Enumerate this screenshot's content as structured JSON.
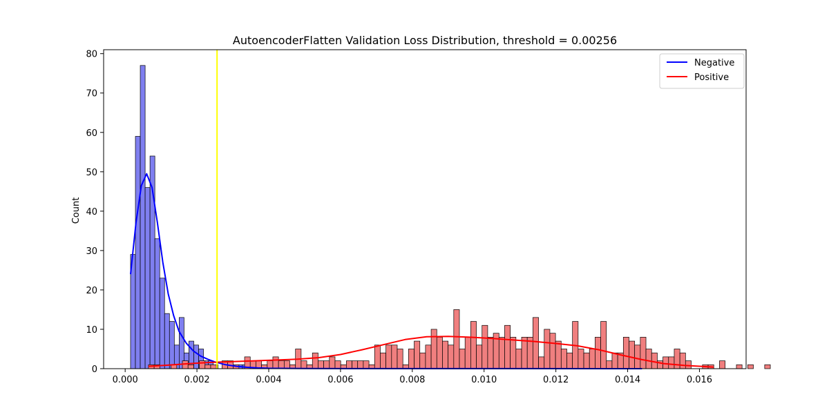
{
  "chart_data": {
    "type": "bar",
    "title": "AutoencoderFlatten Validation Loss Distribution, threshold = 0.00256",
    "xlabel": "",
    "ylabel": "Count",
    "xlim": [
      -0.0006,
      0.0173
    ],
    "ylim": [
      0,
      81
    ],
    "xticks": [
      0.0,
      0.002,
      0.004,
      0.006,
      0.008,
      0.01,
      0.012,
      0.014,
      0.016
    ],
    "xtick_labels": [
      "0.000",
      "0.002",
      "0.004",
      "0.006",
      "0.008",
      "0.010",
      "0.012",
      "0.014",
      "0.016"
    ],
    "yticks": [
      0,
      10,
      20,
      30,
      40,
      50,
      60,
      70,
      80
    ],
    "ytick_labels": [
      "0",
      "10",
      "20",
      "30",
      "40",
      "50",
      "60",
      "70",
      "80"
    ],
    "grid": false,
    "legend_position": "top-right",
    "threshold": {
      "x": 0.00256,
      "color": "#ffff00"
    },
    "series": [
      {
        "name": "Negative",
        "color": "#0000ff",
        "fill": "#7f7ff0",
        "bin_start": 0.00015,
        "bin_width": 0.0001355,
        "counts": [
          29,
          59,
          77,
          46,
          54,
          33,
          23,
          14,
          12,
          6,
          13,
          4,
          7,
          6,
          5,
          2,
          2,
          1,
          0,
          1,
          1,
          1,
          1,
          1,
          1,
          1,
          0,
          0,
          0,
          1,
          0,
          0,
          0,
          0,
          0,
          0,
          0,
          0,
          0,
          0,
          0,
          0,
          0,
          0,
          0,
          0,
          0,
          0,
          0,
          0,
          0,
          0,
          0,
          0,
          0,
          0,
          0,
          0,
          0,
          0,
          0,
          0,
          0,
          0,
          0,
          0,
          0,
          0,
          0,
          0,
          0,
          0,
          0,
          0,
          0,
          0,
          0,
          0,
          0,
          0,
          0,
          0,
          0,
          0,
          0,
          0,
          0,
          0,
          0,
          0,
          0,
          0,
          0,
          0,
          0,
          0,
          0,
          0,
          0,
          1
        ],
        "kde": {
          "x": [
            0.00015,
            0.0003,
            0.00045,
            0.0006,
            0.00075,
            0.0009,
            0.00105,
            0.0012,
            0.00135,
            0.0015,
            0.0017,
            0.0019,
            0.0021,
            0.0023,
            0.0025,
            0.0028,
            0.0031,
            0.0034,
            0.0037,
            0.004,
            0.005,
            0.007,
            0.01,
            0.0144
          ],
          "y": [
            24,
            37,
            46.5,
            49.5,
            46,
            37,
            27,
            19,
            13.5,
            9.5,
            6.5,
            4.5,
            3.2,
            2.4,
            1.7,
            1.0,
            0.6,
            0.35,
            0.2,
            0.1,
            0.05,
            0.02,
            0.01,
            0.0
          ]
        }
      },
      {
        "name": "Positive",
        "color": "#ff0000",
        "fill": "#f07f7f",
        "bin_start": 0.00065,
        "bin_width": 0.0001575,
        "counts": [
          1,
          1,
          0,
          0,
          1,
          0,
          2,
          1,
          0,
          2,
          1,
          1,
          0,
          2,
          2,
          1,
          0,
          3,
          2,
          2,
          1,
          2,
          3,
          2,
          2,
          1,
          5,
          2,
          1,
          4,
          2,
          2,
          3,
          2,
          1,
          2,
          2,
          2,
          2,
          1,
          6,
          4,
          6,
          6,
          5,
          1,
          5,
          7,
          4,
          6,
          10,
          8,
          7,
          6,
          15,
          5,
          8,
          12,
          6,
          11,
          8,
          9,
          8,
          11,
          8,
          5,
          8,
          8,
          13,
          3,
          10,
          9,
          7,
          5,
          4,
          12,
          5,
          4,
          5,
          8,
          12,
          2,
          4,
          4,
          8,
          7,
          6,
          8,
          5,
          4,
          2,
          3,
          3,
          5,
          4,
          2,
          0,
          0,
          1,
          1,
          0,
          2,
          0,
          0,
          1,
          0,
          1,
          0,
          0,
          1
        ],
        "kde": {
          "x": [
            0.00065,
            0.0012,
            0.0018,
            0.0024,
            0.003,
            0.0036,
            0.0042,
            0.0048,
            0.0054,
            0.006,
            0.0066,
            0.0072,
            0.0078,
            0.0084,
            0.009,
            0.0096,
            0.0102,
            0.0108,
            0.0114,
            0.012,
            0.0126,
            0.0132,
            0.0138,
            0.0144,
            0.015,
            0.0156,
            0.0162,
            0.0164
          ],
          "y": [
            0.6,
            0.9,
            1.3,
            1.6,
            1.8,
            2.0,
            2.2,
            2.4,
            2.8,
            3.6,
            4.8,
            6.1,
            7.4,
            8.1,
            8.2,
            8.0,
            7.7,
            7.3,
            6.9,
            6.4,
            5.8,
            4.8,
            3.5,
            2.3,
            1.3,
            0.8,
            0.5,
            0.4
          ]
        }
      }
    ]
  }
}
